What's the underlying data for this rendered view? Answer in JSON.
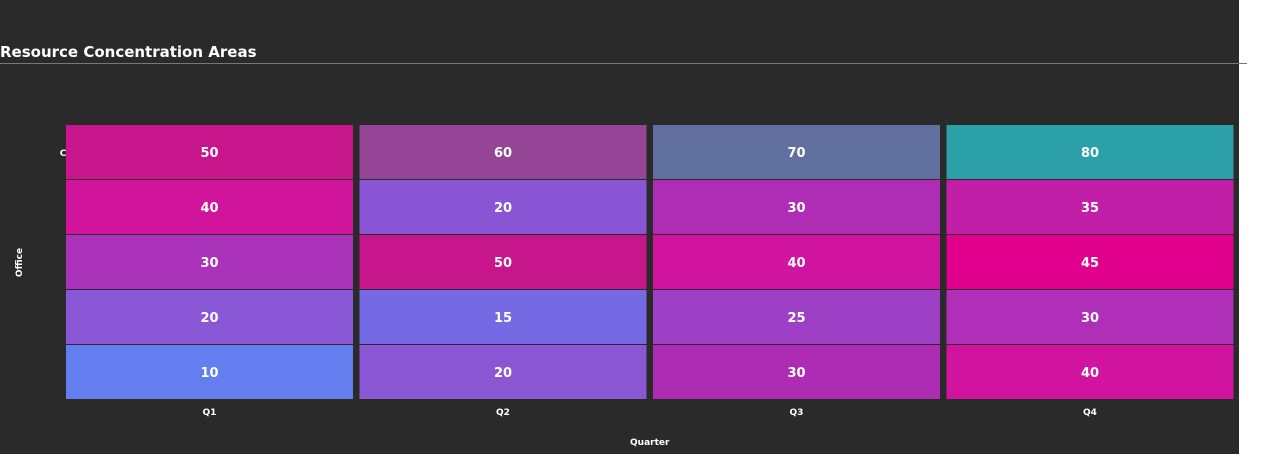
{
  "title": "Resource Concentration Areas",
  "chart_data": {
    "type": "heatmap",
    "title": "Resource Concentration Areas",
    "xlabel": "Quarter",
    "ylabel": "Office",
    "x": [
      "Q1",
      "Q2",
      "Q3",
      "Q4"
    ],
    "y_tick_labels": [
      "C",
      "",
      "",
      "",
      ""
    ],
    "values": [
      [
        50,
        60,
        70,
        80
      ],
      [
        40,
        20,
        30,
        35
      ],
      [
        30,
        50,
        40,
        45
      ],
      [
        20,
        15,
        25,
        30
      ],
      [
        10,
        20,
        30,
        40
      ]
    ],
    "cell_colors": [
      [
        "#c7168c",
        "#954596",
        "#61709e",
        "#2ca0a8"
      ],
      [
        "#d0159c",
        "#8955d4",
        "#af2cb4",
        "#c21fa8"
      ],
      [
        "#a932b8",
        "#c7168c",
        "#d0149f",
        "#e1008d"
      ],
      [
        "#8a58d6",
        "#7669e4",
        "#9e40c6",
        "#af2fb8"
      ],
      [
        "#647ef0",
        "#8a56d4",
        "#ae2cb4",
        "#d0149f"
      ]
    ],
    "background": "#2a2a2a",
    "text_color": "#ffffff"
  }
}
